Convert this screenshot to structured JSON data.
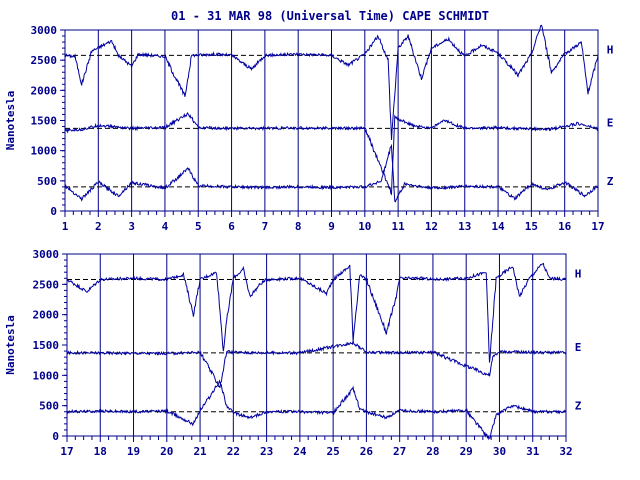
{
  "title": "01 - 31 MAR 98 (Universal Time) CAPE SCHMIDT",
  "ylabel": "Nanotesla",
  "colors": {
    "trace": "#0000a0",
    "axis": "#00008b",
    "baseline": "#000000"
  },
  "chart_data": [
    {
      "type": "line",
      "title": "01 - 31 MAR 98 (Universal Time) CAPE SCHMIDT",
      "ylabel": "Nanotesla",
      "xlim": [
        1,
        17
      ],
      "ylim": [
        0,
        3000
      ],
      "x_ticks": [
        "1",
        "2",
        "3",
        "4",
        "5",
        "6",
        "7",
        "8",
        "9",
        "10",
        "11",
        "12",
        "13",
        "14",
        "15",
        "16",
        "17"
      ],
      "y_ticks": [
        "0",
        "500",
        "1000",
        "1500",
        "2000",
        "2500",
        "3000"
      ],
      "grid": "vertical lines at each day",
      "series": [
        {
          "name": "H",
          "baseline": 2580,
          "values": [
            [
              1,
              2580
            ],
            [
              1.3,
              2560
            ],
            [
              1.5,
              2100
            ],
            [
              1.8,
              2650
            ],
            [
              2.4,
              2820
            ],
            [
              2.6,
              2580
            ],
            [
              3.0,
              2400
            ],
            [
              3.2,
              2600
            ],
            [
              4.0,
              2560
            ],
            [
              4.6,
              1900
            ],
            [
              4.8,
              2580
            ],
            [
              5.5,
              2600
            ],
            [
              6.0,
              2580
            ],
            [
              6.6,
              2350
            ],
            [
              7.0,
              2580
            ],
            [
              8.0,
              2600
            ],
            [
              9.0,
              2580
            ],
            [
              9.5,
              2420
            ],
            [
              10.0,
              2600
            ],
            [
              10.4,
              2900
            ],
            [
              10.7,
              2500
            ],
            [
              10.8,
              1200
            ],
            [
              11.0,
              2700
            ],
            [
              11.3,
              2900
            ],
            [
              11.7,
              2200
            ],
            [
              12.0,
              2700
            ],
            [
              12.5,
              2850
            ],
            [
              13.0,
              2560
            ],
            [
              13.5,
              2750
            ],
            [
              14.0,
              2620
            ],
            [
              14.6,
              2250
            ],
            [
              15.0,
              2600
            ],
            [
              15.3,
              3100
            ],
            [
              15.6,
              2300
            ],
            [
              16.0,
              2600
            ],
            [
              16.5,
              2800
            ],
            [
              16.7,
              1950
            ],
            [
              17.0,
              2580
            ]
          ]
        },
        {
          "name": "E",
          "baseline": 1370,
          "values": [
            [
              1,
              1330
            ],
            [
              1.5,
              1350
            ],
            [
              2.0,
              1420
            ],
            [
              3.0,
              1370
            ],
            [
              4.0,
              1380
            ],
            [
              4.7,
              1620
            ],
            [
              5.0,
              1380
            ],
            [
              6.0,
              1370
            ],
            [
              8.0,
              1375
            ],
            [
              10.0,
              1370
            ],
            [
              10.8,
              300
            ],
            [
              10.9,
              1550
            ],
            [
              11.5,
              1400
            ],
            [
              12.0,
              1380
            ],
            [
              12.4,
              1500
            ],
            [
              13.0,
              1370
            ],
            [
              14.0,
              1380
            ],
            [
              15.5,
              1350
            ],
            [
              16.4,
              1450
            ],
            [
              17.0,
              1360
            ]
          ]
        },
        {
          "name": "Z",
          "baseline": 400,
          "values": [
            [
              1,
              420
            ],
            [
              1.5,
              200
            ],
            [
              2.0,
              480
            ],
            [
              2.6,
              250
            ],
            [
              3.0,
              470
            ],
            [
              4.0,
              380
            ],
            [
              4.7,
              700
            ],
            [
              5.0,
              420
            ],
            [
              6.0,
              400
            ],
            [
              7.0,
              390
            ],
            [
              8.0,
              400
            ],
            [
              9.0,
              390
            ],
            [
              10.0,
              400
            ],
            [
              10.5,
              500
            ],
            [
              10.8,
              1100
            ],
            [
              10.9,
              150
            ],
            [
              11.2,
              450
            ],
            [
              11.8,
              390
            ],
            [
              12.2,
              380
            ],
            [
              13.0,
              410
            ],
            [
              14.0,
              400
            ],
            [
              14.5,
              200
            ],
            [
              15.0,
              450
            ],
            [
              15.5,
              350
            ],
            [
              16.0,
              480
            ],
            [
              16.6,
              250
            ],
            [
              17.0,
              420
            ]
          ]
        }
      ]
    },
    {
      "type": "line",
      "ylabel": "Nanotesla",
      "xlim": [
        17,
        32
      ],
      "ylim": [
        0,
        3000
      ],
      "x_ticks": [
        "17",
        "18",
        "19",
        "20",
        "21",
        "22",
        "23",
        "24",
        "25",
        "26",
        "27",
        "28",
        "29",
        "30",
        "31",
        "32"
      ],
      "y_ticks": [
        "0",
        "500",
        "1000",
        "1500",
        "2000",
        "2500",
        "3000"
      ],
      "grid": "vertical lines at each day",
      "series": [
        {
          "name": "H",
          "baseline": 2580,
          "values": [
            [
              17,
              2580
            ],
            [
              17.6,
              2380
            ],
            [
              18.0,
              2580
            ],
            [
              19.0,
              2600
            ],
            [
              20.0,
              2580
            ],
            [
              20.5,
              2660
            ],
            [
              20.8,
              2000
            ],
            [
              21.0,
              2580
            ],
            [
              21.5,
              2700
            ],
            [
              21.7,
              1400
            ],
            [
              21.8,
              1900
            ],
            [
              22.0,
              2600
            ],
            [
              22.3,
              2750
            ],
            [
              22.5,
              2300
            ],
            [
              22.8,
              2500
            ],
            [
              23.0,
              2580
            ],
            [
              24.0,
              2600
            ],
            [
              24.8,
              2350
            ],
            [
              25.0,
              2580
            ],
            [
              25.5,
              2800
            ],
            [
              25.6,
              1600
            ],
            [
              25.8,
              2650
            ],
            [
              26.0,
              2580
            ],
            [
              26.6,
              1700
            ],
            [
              26.9,
              2300
            ],
            [
              27.0,
              2600
            ],
            [
              27.7,
              2600
            ],
            [
              28.0,
              2580
            ],
            [
              29.0,
              2600
            ],
            [
              29.6,
              2700
            ],
            [
              29.7,
              1200
            ],
            [
              29.9,
              2600
            ],
            [
              30.4,
              2800
            ],
            [
              30.6,
              2300
            ],
            [
              30.9,
              2600
            ],
            [
              31.3,
              2850
            ],
            [
              31.5,
              2600
            ],
            [
              32.0,
              2580
            ]
          ]
        },
        {
          "name": "E",
          "baseline": 1370,
          "values": [
            [
              17,
              1370
            ],
            [
              18,
              1370
            ],
            [
              20,
              1360
            ],
            [
              21,
              1380
            ],
            [
              21.6,
              800
            ],
            [
              21.8,
              1400
            ],
            [
              22,
              1380
            ],
            [
              23,
              1370
            ],
            [
              24,
              1370
            ],
            [
              25.6,
              1540
            ],
            [
              26,
              1380
            ],
            [
              27,
              1370
            ],
            [
              28,
              1380
            ],
            [
              29.7,
              1000
            ],
            [
              29.8,
              1300
            ],
            [
              30,
              1390
            ],
            [
              31,
              1380
            ],
            [
              32,
              1375
            ]
          ]
        },
        {
          "name": "Z",
          "baseline": 400,
          "values": [
            [
              17,
              400
            ],
            [
              18,
              410
            ],
            [
              19,
              400
            ],
            [
              20,
              410
            ],
            [
              20.8,
              200
            ],
            [
              21.0,
              420
            ],
            [
              21.6,
              900
            ],
            [
              21.8,
              500
            ],
            [
              22.0,
              380
            ],
            [
              22.5,
              300
            ],
            [
              23.0,
              400
            ],
            [
              24.0,
              400
            ],
            [
              25.0,
              380
            ],
            [
              25.6,
              780
            ],
            [
              25.8,
              450
            ],
            [
              26.0,
              400
            ],
            [
              26.6,
              300
            ],
            [
              27.0,
              420
            ],
            [
              28.0,
              400
            ],
            [
              29.0,
              420
            ],
            [
              29.7,
              -50
            ],
            [
              29.9,
              350
            ],
            [
              30.4,
              500
            ],
            [
              31.0,
              400
            ],
            [
              32.0,
              400
            ]
          ]
        }
      ]
    }
  ]
}
